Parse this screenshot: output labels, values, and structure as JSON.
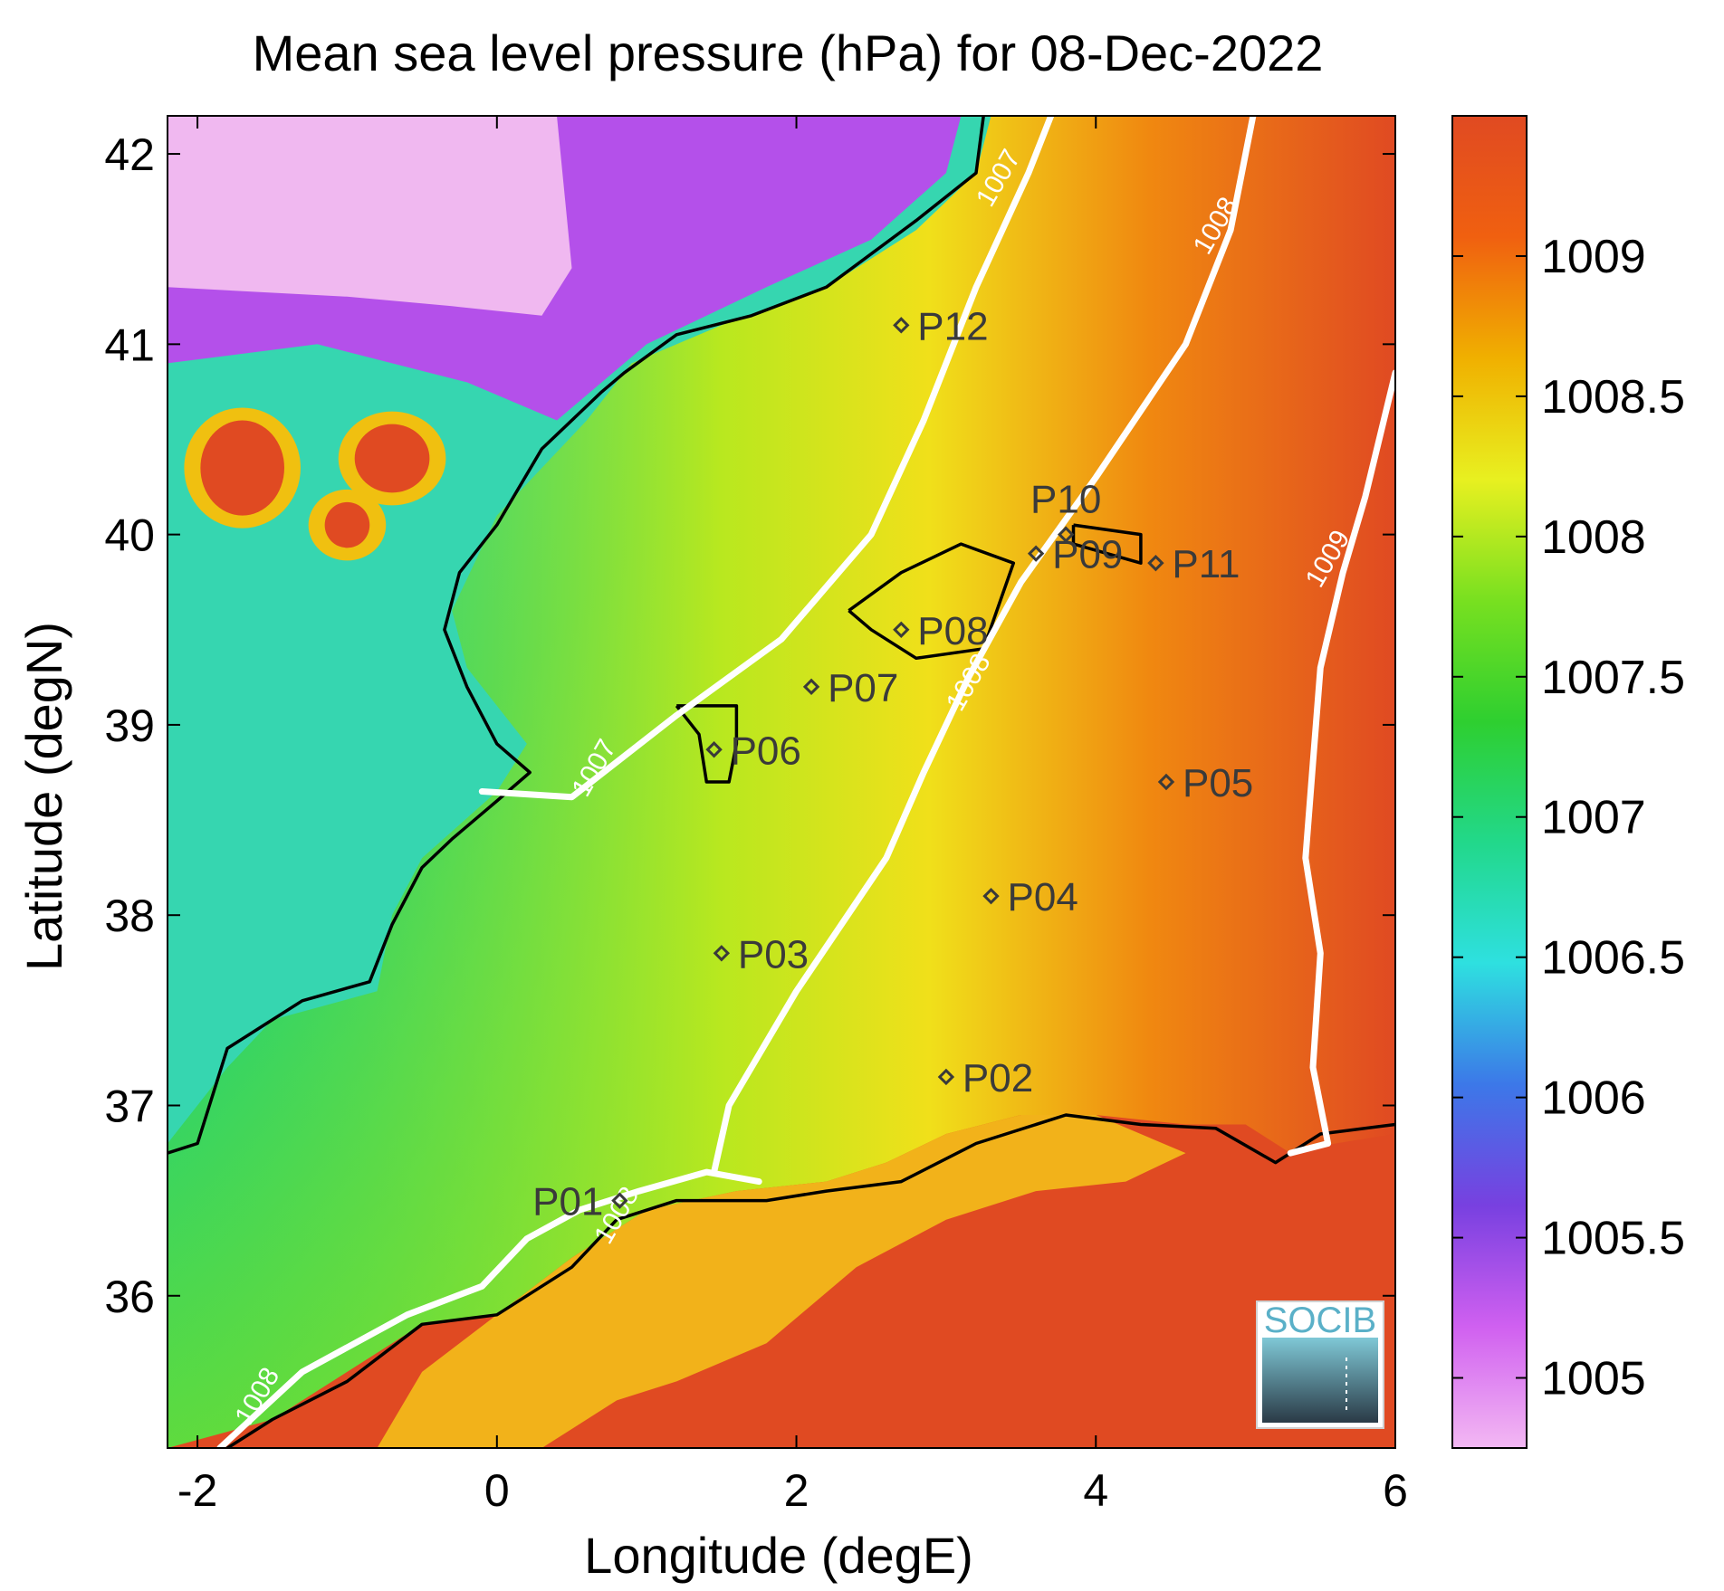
{
  "chart_data": {
    "type": "heatmap",
    "title": "Mean sea level pressure (hPa) for 08-Dec-2022",
    "xlabel": "Longitude (degE)",
    "ylabel": "Latitude (degN)",
    "xlim": [
      -2.2,
      6
    ],
    "ylim": [
      35.2,
      42.2
    ],
    "x_ticks": [
      {
        "value": -2,
        "label": "-2"
      },
      {
        "value": 0,
        "label": "0"
      },
      {
        "value": 2,
        "label": "2"
      },
      {
        "value": 4,
        "label": "4"
      },
      {
        "value": 6,
        "label": "6"
      }
    ],
    "y_ticks": [
      {
        "value": 36,
        "label": "36"
      },
      {
        "value": 37,
        "label": "37"
      },
      {
        "value": 38,
        "label": "38"
      },
      {
        "value": 39,
        "label": "39"
      },
      {
        "value": 40,
        "label": "40"
      },
      {
        "value": 41,
        "label": "41"
      },
      {
        "value": 42,
        "label": "42"
      }
    ],
    "colorbar": {
      "range": [
        1004.75,
        1009.5
      ],
      "ticks": [
        {
          "value": 1005,
          "label": "1005"
        },
        {
          "value": 1005.5,
          "label": "1005.5"
        },
        {
          "value": 1006,
          "label": "1006"
        },
        {
          "value": 1006.5,
          "label": "1006.5"
        },
        {
          "value": 1007,
          "label": "1007"
        },
        {
          "value": 1007.5,
          "label": "1007.5"
        },
        {
          "value": 1008,
          "label": "1008"
        },
        {
          "value": 1008.5,
          "label": "1008.5"
        },
        {
          "value": 1009,
          "label": "1009"
        }
      ],
      "colors": [
        "#f3b8f3",
        "#d060f0",
        "#7840e0",
        "#3c78e8",
        "#2ee0e0",
        "#22d88a",
        "#2ecf30",
        "#78e020",
        "#e8f020",
        "#f0b000",
        "#f06010",
        "#e04a22"
      ]
    },
    "contours": [
      {
        "level": "1007",
        "label": "1007",
        "points": [
          [
            -0.1,
            38.65
          ],
          [
            0.5,
            38.62
          ],
          [
            1.2,
            39.05
          ],
          [
            1.9,
            39.45
          ],
          [
            2.5,
            40.0
          ],
          [
            2.85,
            40.6
          ],
          [
            3.2,
            41.3
          ],
          [
            3.55,
            41.9
          ],
          [
            3.7,
            42.2
          ]
        ],
        "label_positions": [
          [
            0.7,
            38.75
          ],
          [
            3.4,
            41.85
          ]
        ]
      },
      {
        "level": "1008",
        "label": "1008",
        "points": [
          [
            1.45,
            36.65
          ],
          [
            1.55,
            37.0
          ],
          [
            2.0,
            37.6
          ],
          [
            2.6,
            38.3
          ],
          [
            2.85,
            38.75
          ],
          [
            3.15,
            39.25
          ],
          [
            3.5,
            39.75
          ],
          [
            4.0,
            40.3
          ],
          [
            4.6,
            41.0
          ],
          [
            4.9,
            41.6
          ],
          [
            5.05,
            42.2
          ]
        ],
        "label_positions": [
          [
            3.2,
            39.2
          ],
          [
            4.85,
            41.6
          ]
        ]
      },
      {
        "level": "1008",
        "label": "1008",
        "points": [
          [
            -1.85,
            35.2
          ],
          [
            -1.3,
            35.6
          ],
          [
            -0.6,
            35.9
          ],
          [
            -0.1,
            36.05
          ],
          [
            0.2,
            36.3
          ],
          [
            0.55,
            36.45
          ],
          [
            0.95,
            36.55
          ],
          [
            1.4,
            36.65
          ],
          [
            1.75,
            36.6
          ]
        ],
        "label_positions": [
          [
            -1.55,
            35.45
          ],
          [
            0.85,
            36.4
          ]
        ]
      },
      {
        "level": "1009",
        "label": "1009",
        "points": [
          [
            5.3,
            36.75
          ],
          [
            5.55,
            36.8
          ],
          [
            5.45,
            37.2
          ],
          [
            5.5,
            37.8
          ],
          [
            5.4,
            38.3
          ],
          [
            5.45,
            38.8
          ],
          [
            5.5,
            39.3
          ],
          [
            5.65,
            39.8
          ],
          [
            5.8,
            40.2
          ],
          [
            6.0,
            40.85
          ]
        ],
        "label_positions": [
          [
            5.6,
            39.85
          ]
        ]
      }
    ],
    "points": [
      {
        "name": "P01",
        "lon": 0.82,
        "lat": 36.5
      },
      {
        "name": "P02",
        "lon": 3.0,
        "lat": 37.15
      },
      {
        "name": "P03",
        "lon": 1.5,
        "lat": 37.8
      },
      {
        "name": "P04",
        "lon": 3.3,
        "lat": 38.1
      },
      {
        "name": "P05",
        "lon": 4.47,
        "lat": 38.7
      },
      {
        "name": "P06",
        "lon": 1.45,
        "lat": 38.87
      },
      {
        "name": "P07",
        "lon": 2.1,
        "lat": 39.2
      },
      {
        "name": "P08",
        "lon": 2.7,
        "lat": 39.5
      },
      {
        "name": "P09",
        "lon": 3.6,
        "lat": 39.9
      },
      {
        "name": "P10",
        "lon": 3.8,
        "lat": 40.0
      },
      {
        "name": "P11",
        "lon": 4.4,
        "lat": 39.85
      },
      {
        "name": "P12",
        "lon": 2.7,
        "lat": 41.1
      }
    ]
  },
  "logo": {
    "text": "SOCIB"
  }
}
